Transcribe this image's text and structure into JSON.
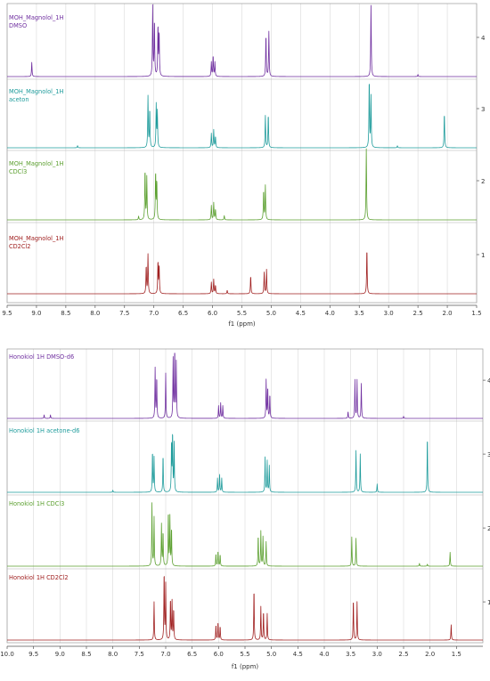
{
  "chart_data": [
    {
      "type": "line",
      "name": "magnolol",
      "x_unit_label": "f1 (ppm)",
      "xlim": [
        9.5,
        1.5
      ],
      "x_reversed": true,
      "x_ticks": [
        "9.5",
        "9.0",
        "8.5",
        "8.0",
        "7.5",
        "7.0",
        "6.5",
        "6.0",
        "5.5",
        "5.0",
        "4.5",
        "4.0",
        "3.5",
        "3.0",
        "2.5",
        "2.0",
        "1.5"
      ],
      "grid": true,
      "right_axis_ticks": [
        "1",
        "2",
        "3",
        "4"
      ],
      "series": [
        {
          "name": "MOH_Magnolol_1H",
          "solvent": "DMSO",
          "color": "#7030a0",
          "peaks": [
            {
              "x": 9.08,
              "h": 0.2
            },
            {
              "x": 7.02,
              "h": 0.98
            },
            {
              "x": 6.99,
              "h": 0.8
            },
            {
              "x": 6.93,
              "h": 0.72
            },
            {
              "x": 6.91,
              "h": 0.62
            },
            {
              "x": 6.02,
              "h": 0.2
            },
            {
              "x": 5.99,
              "h": 0.3
            },
            {
              "x": 5.96,
              "h": 0.2
            },
            {
              "x": 5.09,
              "h": 0.6
            },
            {
              "x": 5.04,
              "h": 0.63
            },
            {
              "x": 3.3,
              "h": 1.0
            },
            {
              "x": 2.5,
              "h": 0.03
            }
          ]
        },
        {
          "name": "MOH_Magnolol_1H",
          "solvent": "aceton",
          "color": "#1f9c9c",
          "peaks": [
            {
              "x": 8.3,
              "h": 0.03
            },
            {
              "x": 7.1,
              "h": 0.72
            },
            {
              "x": 7.07,
              "h": 0.55
            },
            {
              "x": 6.96,
              "h": 0.6
            },
            {
              "x": 6.94,
              "h": 0.5
            },
            {
              "x": 6.02,
              "h": 0.2
            },
            {
              "x": 5.98,
              "h": 0.25
            },
            {
              "x": 5.95,
              "h": 0.16
            },
            {
              "x": 5.1,
              "h": 0.45
            },
            {
              "x": 5.05,
              "h": 0.48
            },
            {
              "x": 3.33,
              "h": 0.98
            },
            {
              "x": 3.3,
              "h": 0.72
            },
            {
              "x": 2.85,
              "h": 0.03
            },
            {
              "x": 2.05,
              "h": 0.5
            }
          ]
        },
        {
          "name": "MOH_Magnolol_1H",
          "solvent": "CDCl3",
          "color": "#5ca030",
          "peaks": [
            {
              "x": 7.26,
              "h": 0.05
            },
            {
              "x": 7.15,
              "h": 0.72
            },
            {
              "x": 7.12,
              "h": 0.6
            },
            {
              "x": 6.97,
              "h": 0.68
            },
            {
              "x": 6.95,
              "h": 0.55
            },
            {
              "x": 6.02,
              "h": 0.2
            },
            {
              "x": 5.98,
              "h": 0.24
            },
            {
              "x": 5.95,
              "h": 0.15
            },
            {
              "x": 5.8,
              "h": 0.06
            },
            {
              "x": 5.13,
              "h": 0.42
            },
            {
              "x": 5.1,
              "h": 0.48
            },
            {
              "x": 3.38,
              "h": 1.0
            }
          ]
        },
        {
          "name": "MOH_Magnolol_1H",
          "solvent": "CD2Cl2",
          "color": "#a02020",
          "peaks": [
            {
              "x": 7.13,
              "h": 0.4
            },
            {
              "x": 7.1,
              "h": 0.55
            },
            {
              "x": 6.93,
              "h": 0.46
            },
            {
              "x": 6.91,
              "h": 0.4
            },
            {
              "x": 6.02,
              "h": 0.16
            },
            {
              "x": 5.98,
              "h": 0.2
            },
            {
              "x": 5.95,
              "h": 0.12
            },
            {
              "x": 5.75,
              "h": 0.05
            },
            {
              "x": 5.35,
              "h": 0.26
            },
            {
              "x": 5.12,
              "h": 0.3
            },
            {
              "x": 5.08,
              "h": 0.34
            },
            {
              "x": 3.37,
              "h": 0.65
            }
          ]
        }
      ]
    },
    {
      "type": "line",
      "name": "honokiol",
      "x_unit_label": "f1 (ppm)",
      "xlim": [
        10.0,
        1.0
      ],
      "x_reversed": true,
      "x_ticks": [
        "10.0",
        "9.5",
        "9.0",
        "8.5",
        "8.0",
        "7.5",
        "7.0",
        "6.5",
        "6.0",
        "5.5",
        "5.0",
        "4.5",
        "4.0",
        "3.5",
        "3.0",
        "2.5",
        "2.0",
        "1.5"
      ],
      "grid": true,
      "right_axis_ticks": [
        "1",
        "2",
        "3",
        "4"
      ],
      "series": [
        {
          "name": "Honokiol 1H DMSO-d6",
          "color": "#7030a0",
          "peaks": [
            {
              "x": 9.3,
              "h": 0.05
            },
            {
              "x": 9.18,
              "h": 0.05
            },
            {
              "x": 7.2,
              "h": 0.72
            },
            {
              "x": 7.17,
              "h": 0.6
            },
            {
              "x": 7.0,
              "h": 0.65
            },
            {
              "x": 6.86,
              "h": 0.85
            },
            {
              "x": 6.83,
              "h": 1.0
            },
            {
              "x": 6.8,
              "h": 0.8
            },
            {
              "x": 6.0,
              "h": 0.18
            },
            {
              "x": 5.96,
              "h": 0.22
            },
            {
              "x": 5.92,
              "h": 0.18
            },
            {
              "x": 5.1,
              "h": 0.55
            },
            {
              "x": 5.07,
              "h": 0.45
            },
            {
              "x": 5.03,
              "h": 0.35
            },
            {
              "x": 3.55,
              "h": 0.1
            },
            {
              "x": 3.42,
              "h": 0.55
            },
            {
              "x": 3.38,
              "h": 0.55
            },
            {
              "x": 3.3,
              "h": 0.5
            },
            {
              "x": 2.5,
              "h": 0.03
            }
          ]
        },
        {
          "name": "Honokiol 1H acetone-d6",
          "color": "#1f9c9c",
          "peaks": [
            {
              "x": 8.0,
              "h": 0.03
            },
            {
              "x": 7.25,
              "h": 0.6
            },
            {
              "x": 7.22,
              "h": 0.5
            },
            {
              "x": 7.05,
              "h": 0.55
            },
            {
              "x": 6.89,
              "h": 0.72
            },
            {
              "x": 6.87,
              "h": 0.85
            },
            {
              "x": 6.84,
              "h": 0.7
            },
            {
              "x": 6.02,
              "h": 0.2
            },
            {
              "x": 5.98,
              "h": 0.25
            },
            {
              "x": 5.94,
              "h": 0.2
            },
            {
              "x": 5.12,
              "h": 0.5
            },
            {
              "x": 5.08,
              "h": 0.45
            },
            {
              "x": 5.04,
              "h": 0.38
            },
            {
              "x": 3.4,
              "h": 0.6
            },
            {
              "x": 3.32,
              "h": 0.55
            },
            {
              "x": 3.0,
              "h": 0.12
            },
            {
              "x": 2.05,
              "h": 0.82
            }
          ]
        },
        {
          "name": "Honokiol 1H CDCl3",
          "color": "#5ca030",
          "peaks": [
            {
              "x": 7.26,
              "h": 0.9
            },
            {
              "x": 7.22,
              "h": 0.7
            },
            {
              "x": 7.08,
              "h": 0.6
            },
            {
              "x": 7.05,
              "h": 0.5
            },
            {
              "x": 6.95,
              "h": 0.8
            },
            {
              "x": 6.92,
              "h": 0.7
            },
            {
              "x": 6.89,
              "h": 0.55
            },
            {
              "x": 6.05,
              "h": 0.18
            },
            {
              "x": 6.01,
              "h": 0.22
            },
            {
              "x": 5.97,
              "h": 0.17
            },
            {
              "x": 5.25,
              "h": 0.45
            },
            {
              "x": 5.2,
              "h": 0.5
            },
            {
              "x": 5.16,
              "h": 0.42
            },
            {
              "x": 5.1,
              "h": 0.35
            },
            {
              "x": 3.48,
              "h": 0.42
            },
            {
              "x": 3.4,
              "h": 0.4
            },
            {
              "x": 2.2,
              "h": 0.04
            },
            {
              "x": 2.05,
              "h": 0.03
            },
            {
              "x": 1.62,
              "h": 0.2
            }
          ]
        },
        {
          "name": "Honokiol 1H CD2Cl2",
          "color": "#a02020",
          "peaks": [
            {
              "x": 7.22,
              "h": 0.55
            },
            {
              "x": 7.03,
              "h": 1.0
            },
            {
              "x": 7.0,
              "h": 0.8
            },
            {
              "x": 6.91,
              "h": 0.6
            },
            {
              "x": 6.88,
              "h": 0.55
            },
            {
              "x": 6.85,
              "h": 0.45
            },
            {
              "x": 6.05,
              "h": 0.22
            },
            {
              "x": 6.01,
              "h": 0.26
            },
            {
              "x": 5.97,
              "h": 0.2
            },
            {
              "x": 5.33,
              "h": 0.75
            },
            {
              "x": 5.2,
              "h": 0.48
            },
            {
              "x": 5.15,
              "h": 0.42
            },
            {
              "x": 5.08,
              "h": 0.38
            },
            {
              "x": 3.45,
              "h": 0.6
            },
            {
              "x": 3.38,
              "h": 0.55
            },
            {
              "x": 1.6,
              "h": 0.22
            }
          ]
        }
      ]
    }
  ]
}
